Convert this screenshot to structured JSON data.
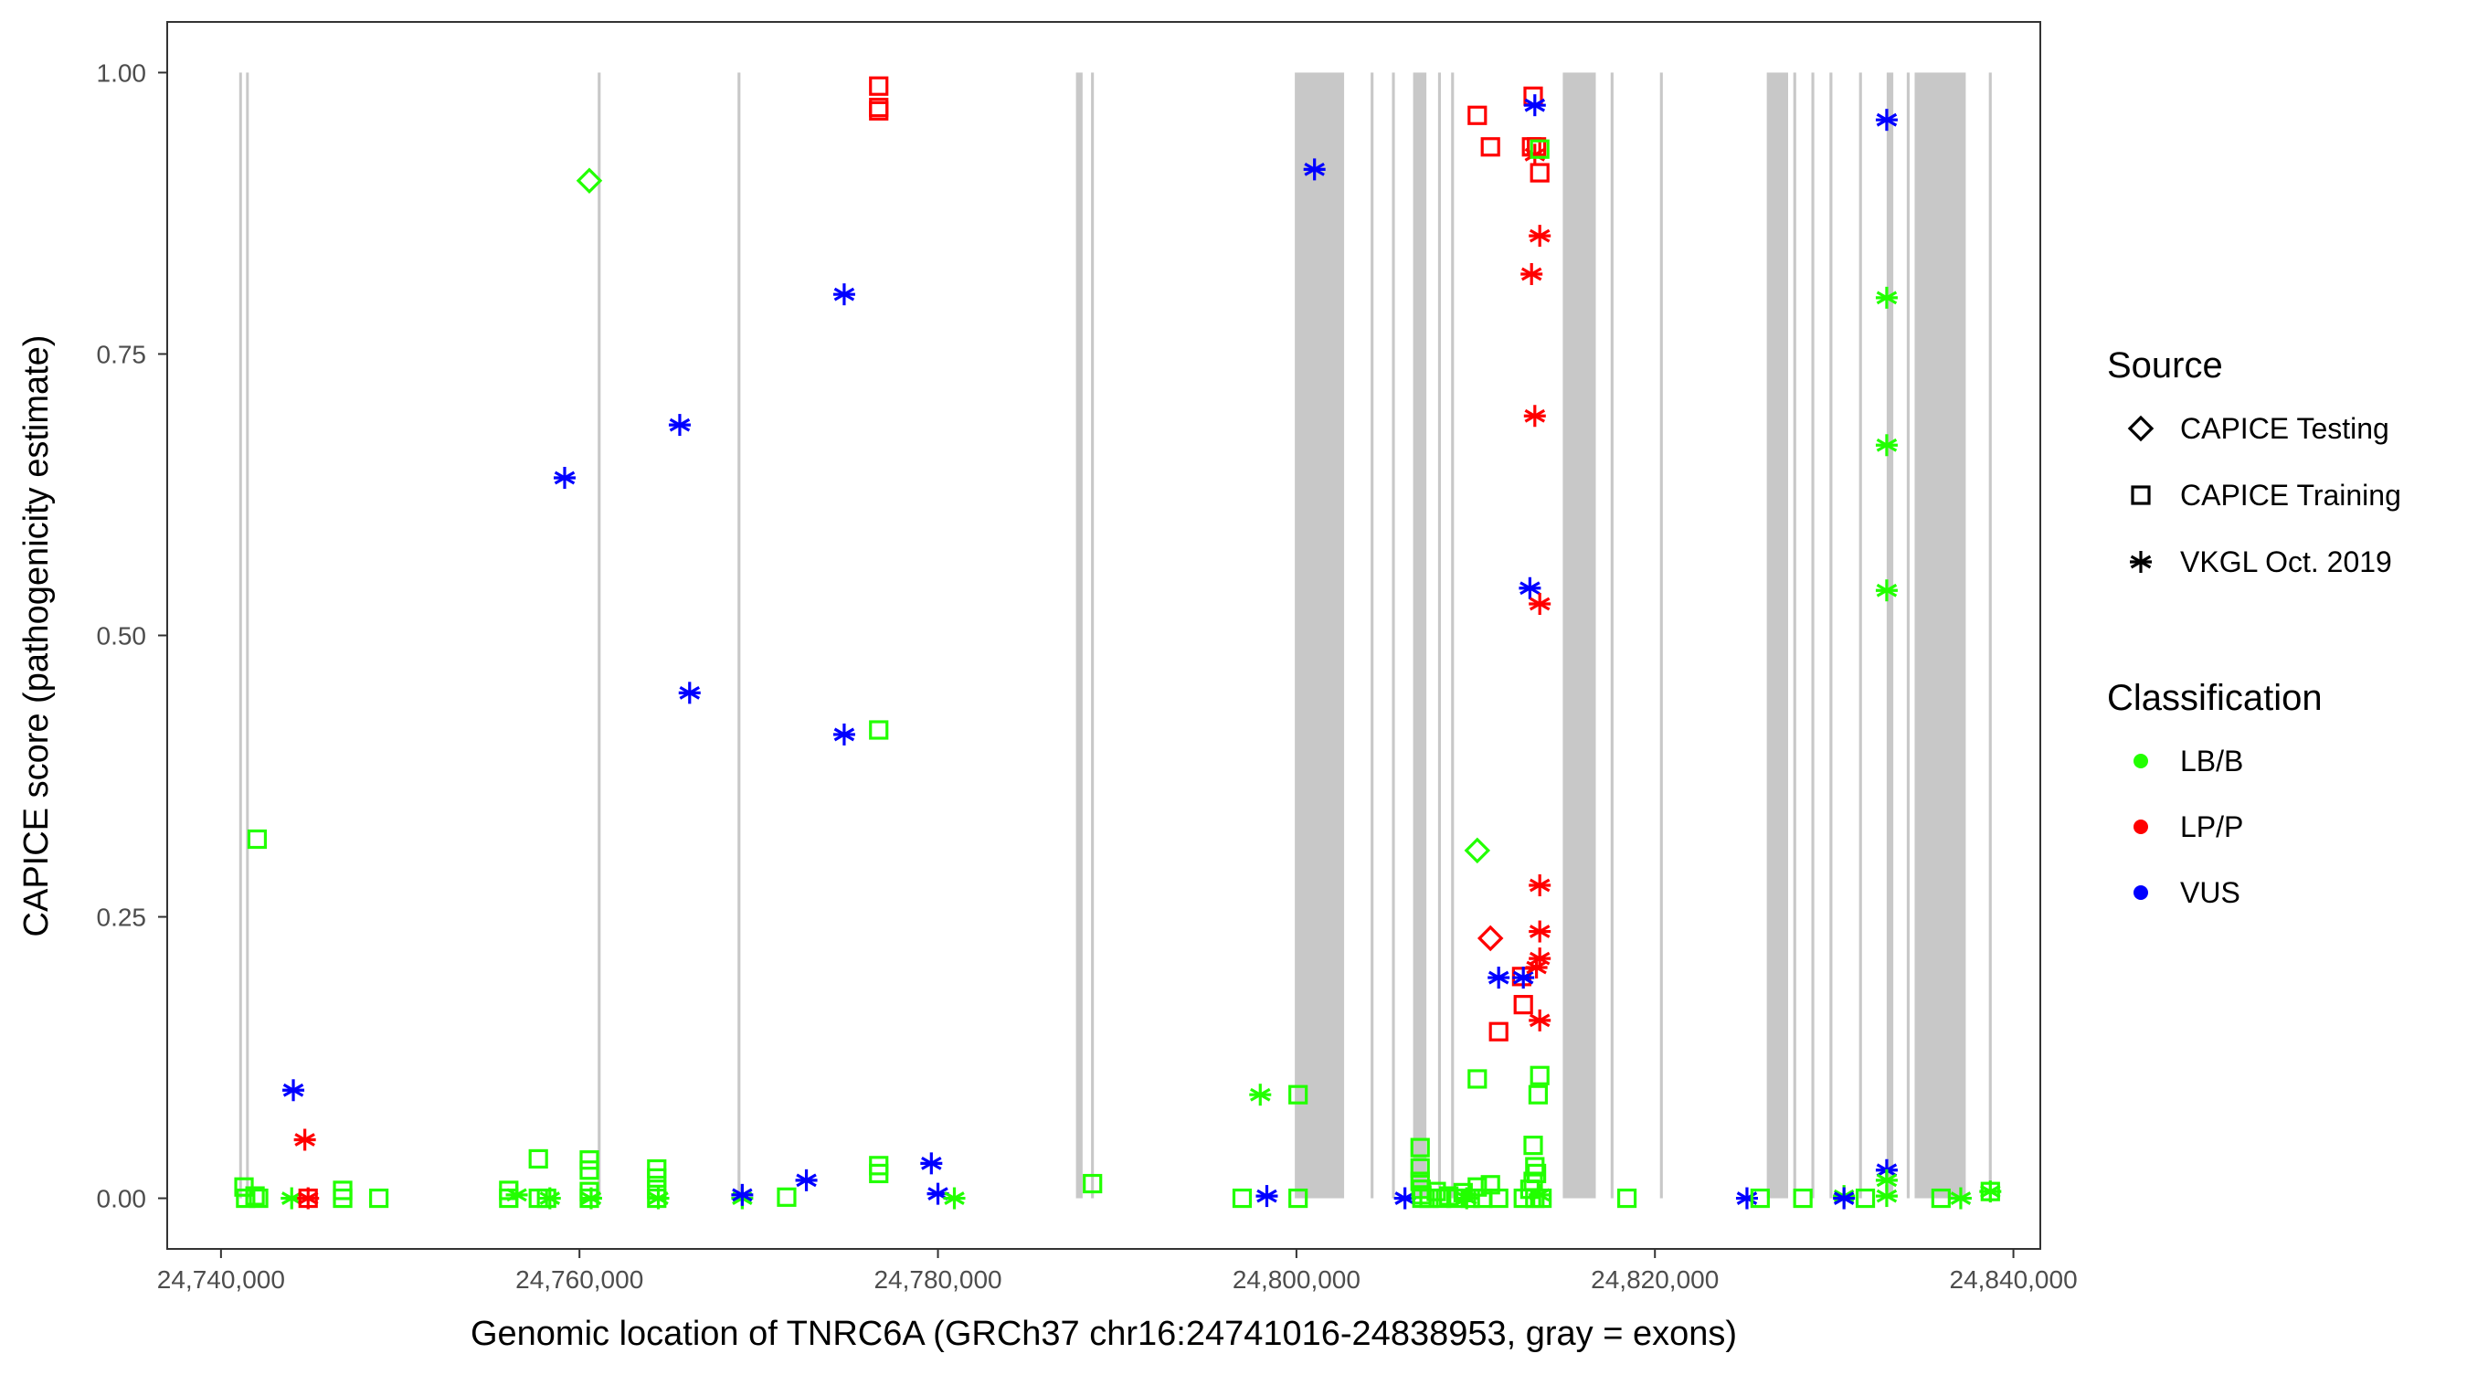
{
  "chart_data": {
    "type": "scatter",
    "xlabel": "Genomic location of TNRC6A (GRCh37 chr16:24741016-24838953, gray = exons)",
    "ylabel": "CAPICE score (pathogenicity estimate)",
    "xlim": [
      24737000,
      24841500
    ],
    "ylim": [
      -0.045,
      1.045
    ],
    "xticks": [
      24740000,
      24760000,
      24780000,
      24800000,
      24820000,
      24840000
    ],
    "xtick_labels": [
      "24,740,000",
      "24,760,000",
      "24,780,000",
      "24,800,000",
      "24,820,000",
      "24,840,000"
    ],
    "yticks": [
      0,
      0.25,
      0.5,
      0.75,
      1.0
    ],
    "ytick_labels": [
      "0.00",
      "0.25",
      "0.50",
      "0.75",
      "1.00"
    ],
    "grid": false,
    "legend_placement": "right",
    "legend": {
      "source_title": "Source",
      "sources": [
        {
          "key": "test",
          "label": "CAPICE Testing",
          "shape": "diamond"
        },
        {
          "key": "train",
          "label": "CAPICE Training",
          "shape": "square"
        },
        {
          "key": "vkgl",
          "label": "VKGL Oct. 2019",
          "shape": "asterisk"
        }
      ],
      "class_title": "Classification",
      "classes": [
        {
          "key": "LB/B",
          "label": "LB/B",
          "color": "#22ff00"
        },
        {
          "key": "LP/P",
          "label": "LP/P",
          "color": "#ff0000"
        },
        {
          "key": "VUS",
          "label": "VUS",
          "color": "#0000ff"
        }
      ]
    },
    "exon_color": "#c8c8c8",
    "exons": [
      [
        24741016,
        24741150
      ],
      [
        24741400,
        24741520
      ],
      [
        24761020,
        24761180
      ],
      [
        24768820,
        24768980
      ],
      [
        24787700,
        24788070
      ],
      [
        24788540,
        24788700
      ],
      [
        24799910,
        24802660
      ],
      [
        24804140,
        24804300
      ],
      [
        24805330,
        24805490
      ],
      [
        24806510,
        24807250
      ],
      [
        24807900,
        24808060
      ],
      [
        24808630,
        24808790
      ],
      [
        24814860,
        24816700
      ],
      [
        24817530,
        24817690
      ],
      [
        24820280,
        24820440
      ],
      [
        24826240,
        24827430
      ],
      [
        24827720,
        24827880
      ],
      [
        24828730,
        24828890
      ],
      [
        24829740,
        24829900
      ],
      [
        24831390,
        24831550
      ],
      [
        24832930,
        24833300
      ],
      [
        24834050,
        24834210
      ],
      [
        24834490,
        24837340
      ],
      [
        24838630,
        24838790
      ]
    ],
    "points": [
      [
        24741284,
        0.01,
        "train",
        "LB/B"
      ],
      [
        24741376,
        0.0,
        "train",
        "LB/B"
      ],
      [
        24741900,
        0.002,
        "train",
        "LB/B"
      ],
      [
        24742018,
        0.319,
        "train",
        "LB/B"
      ],
      [
        24742100,
        0.0,
        "train",
        "LB/B"
      ],
      [
        24743945,
        0.0,
        "vkgl",
        "LB/B"
      ],
      [
        24744037,
        0.096,
        "vkgl",
        "VUS"
      ],
      [
        24744679,
        0.052,
        "vkgl",
        "LP/P"
      ],
      [
        24744862,
        0.0,
        "train",
        "LP/P"
      ],
      [
        24744862,
        0.0,
        "vkgl",
        "LP/P"
      ],
      [
        24746789,
        0.007,
        "train",
        "LB/B"
      ],
      [
        24746789,
        0.0,
        "train",
        "LB/B"
      ],
      [
        24748807,
        0.0,
        "train",
        "LB/B"
      ],
      [
        24756055,
        0.007,
        "train",
        "LB/B"
      ],
      [
        24756055,
        0.0,
        "train",
        "LB/B"
      ],
      [
        24756500,
        0.003,
        "vkgl",
        "LB/B"
      ],
      [
        24757706,
        0.035,
        "train",
        "LB/B"
      ],
      [
        24757706,
        0.0,
        "train",
        "LB/B"
      ],
      [
        24758165,
        0.0,
        "train",
        "LB/B"
      ],
      [
        24758348,
        0.0,
        "vkgl",
        "LB/B"
      ],
      [
        24759174,
        0.64,
        "vkgl",
        "VUS"
      ],
      [
        24760550,
        0.904,
        "test",
        "LB/B"
      ],
      [
        24760550,
        0.034,
        "train",
        "LB/B"
      ],
      [
        24760550,
        0.025,
        "train",
        "LB/B"
      ],
      [
        24760550,
        0.006,
        "train",
        "LB/B"
      ],
      [
        24760550,
        0.0,
        "train",
        "LB/B"
      ],
      [
        24760650,
        0.0,
        "vkgl",
        "LB/B"
      ],
      [
        24764311,
        0.026,
        "train",
        "LB/B"
      ],
      [
        24764311,
        0.018,
        "train",
        "LB/B"
      ],
      [
        24764311,
        0.008,
        "train",
        "LB/B"
      ],
      [
        24764311,
        0.0,
        "train",
        "LB/B"
      ],
      [
        24764400,
        0.0,
        "vkgl",
        "LB/B"
      ],
      [
        24765595,
        0.687,
        "vkgl",
        "VUS"
      ],
      [
        24766146,
        0.449,
        "vkgl",
        "VUS"
      ],
      [
        24769082,
        0.0,
        "vkgl",
        "LB/B"
      ],
      [
        24769082,
        0.003,
        "vkgl",
        "VUS"
      ],
      [
        24771559,
        0.001,
        "train",
        "LB/B"
      ],
      [
        24772660,
        0.016,
        "vkgl",
        "VUS"
      ],
      [
        24774769,
        0.803,
        "vkgl",
        "VUS"
      ],
      [
        24774769,
        0.412,
        "vkgl",
        "VUS"
      ],
      [
        24776696,
        0.988,
        "train",
        "LP/P"
      ],
      [
        24776696,
        0.969,
        "train",
        "LP/P"
      ],
      [
        24776696,
        0.966,
        "train",
        "LP/P"
      ],
      [
        24776696,
        0.416,
        "train",
        "LB/B"
      ],
      [
        24776696,
        0.029,
        "train",
        "LB/B"
      ],
      [
        24776696,
        0.022,
        "train",
        "LB/B"
      ],
      [
        24779632,
        0.031,
        "vkgl",
        "VUS"
      ],
      [
        24779999,
        0.004,
        "vkgl",
        "VUS"
      ],
      [
        24780916,
        0.0,
        "vkgl",
        "LB/B"
      ],
      [
        24788623,
        0.013,
        "train",
        "LB/B"
      ],
      [
        24796972,
        0.0,
        "train",
        "LB/B"
      ],
      [
        24797981,
        0.092,
        "vkgl",
        "LB/B"
      ],
      [
        24798348,
        0.002,
        "vkgl",
        "VUS"
      ],
      [
        24800091,
        0.092,
        "train",
        "LB/B"
      ],
      [
        24800091,
        0.0,
        "train",
        "LB/B"
      ],
      [
        24801008,
        0.914,
        "vkgl",
        "VUS"
      ],
      [
        24806054,
        0.0,
        "vkgl",
        "VUS"
      ],
      [
        24806900,
        0.045,
        "train",
        "LB/B"
      ],
      [
        24806900,
        0.027,
        "train",
        "LB/B"
      ],
      [
        24806900,
        0.015,
        "train",
        "LB/B"
      ],
      [
        24806950,
        0.008,
        "train",
        "LB/B"
      ],
      [
        24807000,
        0.003,
        "train",
        "LB/B"
      ],
      [
        24807000,
        0.0,
        "train",
        "LB/B"
      ],
      [
        24807400,
        0.0,
        "train",
        "LB/B"
      ],
      [
        24807800,
        0.006,
        "train",
        "LB/B"
      ],
      [
        24808100,
        0.0,
        "train",
        "LB/B"
      ],
      [
        24808500,
        0.002,
        "train",
        "LB/B"
      ],
      [
        24808900,
        0.0,
        "train",
        "LB/B"
      ],
      [
        24809300,
        0.005,
        "train",
        "LB/B"
      ],
      [
        24809500,
        0.0,
        "vkgl",
        "LB/B"
      ],
      [
        24809700,
        0.0,
        "train",
        "LB/B"
      ],
      [
        24810089,
        0.01,
        "train",
        "LB/B"
      ],
      [
        24810089,
        0.962,
        "train",
        "LP/P"
      ],
      [
        24810089,
        0.309,
        "test",
        "LB/B"
      ],
      [
        24810089,
        0.106,
        "train",
        "LB/B"
      ],
      [
        24810400,
        0.0,
        "train",
        "LB/B"
      ],
      [
        24810823,
        0.934,
        "train",
        "LP/P"
      ],
      [
        24810823,
        0.231,
        "test",
        "LP/P"
      ],
      [
        24810823,
        0.012,
        "train",
        "LB/B"
      ],
      [
        24811281,
        0.196,
        "vkgl",
        "VUS"
      ],
      [
        24811281,
        0.148,
        "train",
        "LP/P"
      ],
      [
        24811281,
        0.0,
        "train",
        "LB/B"
      ],
      [
        24812566,
        0.197,
        "train",
        "LP/P"
      ],
      [
        24812658,
        0.172,
        "train",
        "LP/P"
      ],
      [
        24812658,
        0.196,
        "vkgl",
        "VUS"
      ],
      [
        24812658,
        0.0,
        "train",
        "LB/B"
      ],
      [
        24813025,
        0.542,
        "vkgl",
        "VUS"
      ],
      [
        24813025,
        0.008,
        "train",
        "LB/B"
      ],
      [
        24813117,
        0.821,
        "vkgl",
        "LP/P"
      ],
      [
        24813117,
        0.934,
        "train",
        "LP/P"
      ],
      [
        24813208,
        0.979,
        "train",
        "LP/P"
      ],
      [
        24813208,
        0.047,
        "train",
        "LB/B"
      ],
      [
        24813208,
        0.015,
        "train",
        "LB/B"
      ],
      [
        24813300,
        0.971,
        "vkgl",
        "VUS"
      ],
      [
        24813300,
        0.927,
        "vkgl",
        "LP/P"
      ],
      [
        24813300,
        0.695,
        "vkgl",
        "LP/P"
      ],
      [
        24813300,
        0.028,
        "train",
        "LB/B"
      ],
      [
        24813300,
        0.0,
        "train",
        "LB/B"
      ],
      [
        24813392,
        0.934,
        "train",
        "LP/P"
      ],
      [
        24813392,
        0.205,
        "vkgl",
        "LP/P"
      ],
      [
        24813392,
        0.022,
        "train",
        "LB/B"
      ],
      [
        24813484,
        0.092,
        "train",
        "LB/B"
      ],
      [
        24813575,
        0.932,
        "train",
        "LB/B"
      ],
      [
        24813575,
        0.911,
        "train",
        "LP/P"
      ],
      [
        24813575,
        0.855,
        "vkgl",
        "LP/P"
      ],
      [
        24813575,
        0.528,
        "vkgl",
        "LP/P"
      ],
      [
        24813575,
        0.278,
        "vkgl",
        "LP/P"
      ],
      [
        24813575,
        0.237,
        "vkgl",
        "LP/P"
      ],
      [
        24813575,
        0.213,
        "vkgl",
        "LP/P"
      ],
      [
        24813575,
        0.158,
        "vkgl",
        "LP/P"
      ],
      [
        24813575,
        0.109,
        "train",
        "LB/B"
      ],
      [
        24813575,
        0.003,
        "vkgl",
        "LB/B"
      ],
      [
        24813700,
        0.0,
        "train",
        "LB/B"
      ],
      [
        24818438,
        0.0,
        "train",
        "LB/B"
      ],
      [
        24825135,
        0.0,
        "vkgl",
        "VUS"
      ],
      [
        24825869,
        0.0,
        "train",
        "LB/B"
      ],
      [
        24828254,
        0.0,
        "train",
        "LB/B"
      ],
      [
        24830548,
        0.002,
        "vkgl",
        "LB/B"
      ],
      [
        24830548,
        0.0,
        "vkgl",
        "VUS"
      ],
      [
        24831740,
        0.0,
        "train",
        "LB/B"
      ],
      [
        24832933,
        0.958,
        "vkgl",
        "VUS"
      ],
      [
        24832933,
        0.8,
        "vkgl",
        "LB/B"
      ],
      [
        24832933,
        0.669,
        "vkgl",
        "LB/B"
      ],
      [
        24832933,
        0.54,
        "vkgl",
        "LB/B"
      ],
      [
        24832933,
        0.025,
        "vkgl",
        "VUS"
      ],
      [
        24832933,
        0.016,
        "vkgl",
        "LB/B"
      ],
      [
        24832933,
        0.002,
        "vkgl",
        "LB/B"
      ],
      [
        24835961,
        0.0,
        "train",
        "LB/B"
      ],
      [
        24837062,
        0.0,
        "vkgl",
        "LB/B"
      ],
      [
        24838713,
        0.006,
        "train",
        "LB/B"
      ],
      [
        24838713,
        0.006,
        "vkgl",
        "LB/B"
      ]
    ]
  }
}
